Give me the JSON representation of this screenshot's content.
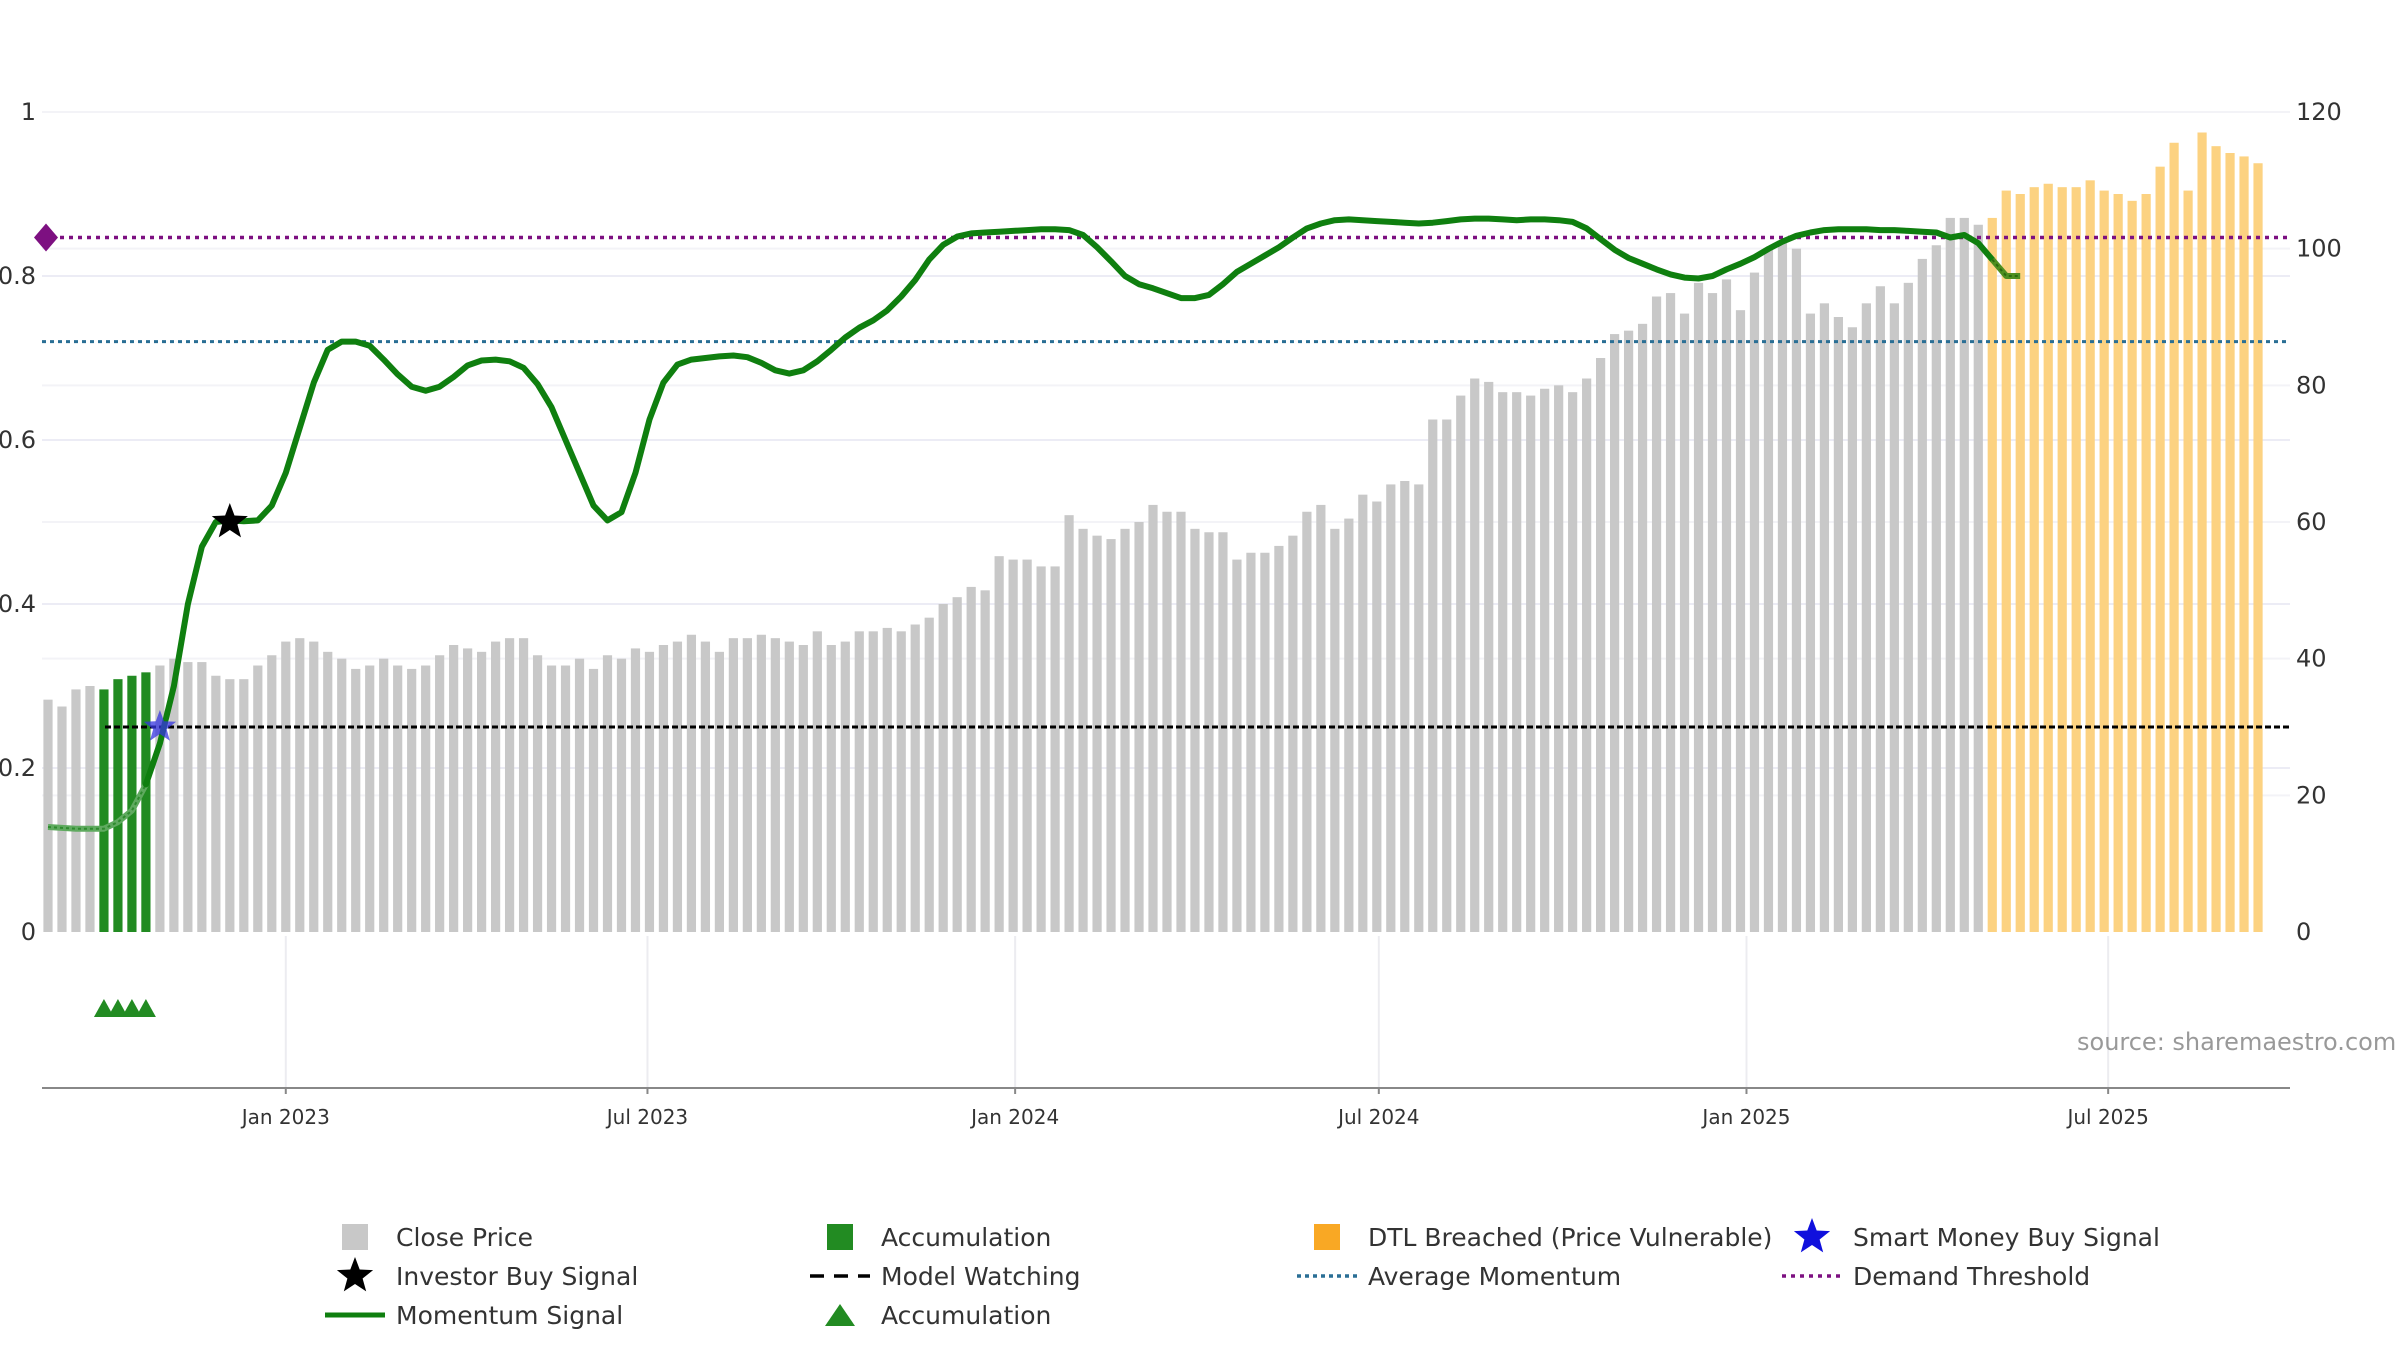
{
  "chart_data": {
    "type": "bar+line",
    "title": "",
    "source_note": "source: sharemaestro.com",
    "left_axis": {
      "ticks": [
        "0",
        "0.2",
        "0.4",
        "0.6",
        "0.8",
        "1"
      ],
      "range": [
        0,
        1
      ]
    },
    "right_axis": {
      "ticks": [
        "0",
        "20",
        "40",
        "60",
        "80",
        "100",
        "120"
      ],
      "range": [
        0,
        120
      ]
    },
    "x_range": [
      "2022-09-01",
      "2025-09-30"
    ],
    "x_ticks": [
      {
        "label": "Jan 2023",
        "date": "2023-01-01"
      },
      {
        "label": "Jul 2023",
        "date": "2023-07-01"
      },
      {
        "label": "Jan 2024",
        "date": "2024-01-01"
      },
      {
        "label": "Jul 2024",
        "date": "2024-07-01"
      },
      {
        "label": "Jan 2025",
        "date": "2025-01-01"
      },
      {
        "label": "Jul 2025",
        "date": "2025-07-01"
      }
    ],
    "weeks_start": "2022-09-04",
    "close_price": [
      34,
      33,
      35.5,
      36,
      35.5,
      37,
      37.5,
      38,
      39,
      40,
      39.5,
      39.5,
      37.5,
      37,
      37,
      39,
      40.5,
      42.5,
      43,
      42.5,
      41,
      40,
      38.5,
      39,
      40,
      39,
      38.5,
      39,
      40.5,
      42,
      41.5,
      41,
      42.5,
      43,
      43,
      40.5,
      39,
      39,
      40,
      38.5,
      40.5,
      40,
      41.5,
      41,
      42,
      42.5,
      43.5,
      42.5,
      41,
      43,
      43,
      43.5,
      43,
      42.5,
      42,
      44,
      42,
      42.5,
      44,
      44,
      44.5,
      44,
      45,
      46,
      48,
      49,
      50.5,
      50,
      55,
      54.5,
      54.5,
      53.5,
      53.5,
      61,
      59,
      58,
      57.5,
      59,
      60,
      62.5,
      61.5,
      61.5,
      59,
      58.5,
      58.5,
      54.5,
      55.5,
      55.5,
      56.5,
      58,
      61.5,
      62.5,
      59,
      60.5,
      64,
      63,
      65.5,
      66,
      65.5,
      75,
      75,
      78.5,
      81,
      80.5,
      79,
      79,
      78.5,
      79.5,
      80,
      79,
      81,
      84,
      87.5,
      88,
      89,
      93,
      93.5,
      90.5,
      95,
      93.5,
      95.5,
      91,
      96.5,
      100,
      101,
      100,
      90.5,
      92,
      90,
      88.5,
      92,
      94.5,
      92,
      95,
      98.5,
      100.5,
      104.5,
      104.5,
      103.5,
      104.5,
      108.5,
      108,
      109,
      109.5,
      109,
      109,
      110,
      108.5,
      108,
      107,
      108,
      112,
      115.5,
      108.5,
      117,
      115,
      114,
      113.5,
      112.5
    ],
    "accumulation_bars": {
      "start_index": 4,
      "end_index": 7
    },
    "dtl_breached_from_index": 139,
    "momentum_signal": [
      0.128,
      0.127,
      0.126,
      0.126,
      0.126,
      0.134,
      0.148,
      0.18,
      0.23,
      0.3,
      0.4,
      0.47,
      0.5,
      0.502,
      0.501,
      0.502,
      0.52,
      0.56,
      0.615,
      0.67,
      0.71,
      0.72,
      0.72,
      0.715,
      0.698,
      0.68,
      0.665,
      0.66,
      0.665,
      0.677,
      0.691,
      0.697,
      0.698,
      0.696,
      0.688,
      0.668,
      0.64,
      0.6,
      0.56,
      0.52,
      0.502,
      0.512,
      0.56,
      0.625,
      0.67,
      0.692,
      0.698,
      0.7,
      0.702,
      0.703,
      0.701,
      0.694,
      0.685,
      0.681,
      0.685,
      0.696,
      0.71,
      0.725,
      0.737,
      0.746,
      0.758,
      0.775,
      0.795,
      0.82,
      0.838,
      0.848,
      0.852,
      0.853,
      0.854,
      0.855,
      0.856,
      0.857,
      0.857,
      0.856,
      0.85,
      0.835,
      0.818,
      0.8,
      0.79,
      0.785,
      0.779,
      0.773,
      0.773,
      0.777,
      0.79,
      0.805,
      0.815,
      0.825,
      0.835,
      0.847,
      0.858,
      0.864,
      0.868,
      0.869,
      0.868,
      0.867,
      0.866,
      0.865,
      0.864,
      0.865,
      0.867,
      0.869,
      0.87,
      0.87,
      0.869,
      0.868,
      0.869,
      0.869,
      0.868,
      0.866,
      0.858,
      0.845,
      0.832,
      0.822,
      0.815,
      0.808,
      0.802,
      0.798,
      0.797,
      0.8,
      0.808,
      0.815,
      0.823,
      0.833,
      0.842,
      0.849,
      0.853,
      0.856,
      0.857,
      0.857,
      0.857,
      0.856,
      0.856,
      0.855,
      0.854,
      0.853,
      0.847,
      0.85,
      0.84,
      0.82,
      0.8,
      0.8
    ],
    "investor_buy_signal": {
      "index": 13,
      "value": 0.5
    },
    "smart_money_buy_signal": {
      "index": 8,
      "value": 0.25
    },
    "accumulation_markers_indices": [
      4,
      5,
      6,
      7
    ],
    "model_watching_level": 0.25,
    "average_momentum_level": 0.72,
    "demand_threshold_level": 0.847,
    "colors": {
      "close": "#c8c8c8",
      "accumulation": "#228b22",
      "dtl": "#fcd281",
      "momentum": "#0f7f0f",
      "avg": "#2a6f95",
      "demand": "#7d1081",
      "watch": "#000000",
      "smart": "#3535e0",
      "legend_smart": "#1010dd",
      "legend_dtl": "#f9a824"
    },
    "legend": [
      {
        "label": "Close Price",
        "symbol": "square-gray"
      },
      {
        "label": "Accumulation",
        "symbol": "square-green"
      },
      {
        "label": "DTL Breached (Price Vulnerable)",
        "symbol": "square-orange"
      },
      {
        "label": "Smart Money Buy Signal",
        "symbol": "star-blue"
      },
      {
        "label": "Investor Buy Signal",
        "symbol": "star-black"
      },
      {
        "label": "Model Watching",
        "symbol": "dash-black"
      },
      {
        "label": "Average Momentum",
        "symbol": "dot-blue"
      },
      {
        "label": "Demand Threshold",
        "symbol": "dot-purple"
      },
      {
        "label": "Momentum Signal",
        "symbol": "line-green"
      },
      {
        "label": "Accumulation",
        "symbol": "triangle-green"
      }
    ]
  }
}
